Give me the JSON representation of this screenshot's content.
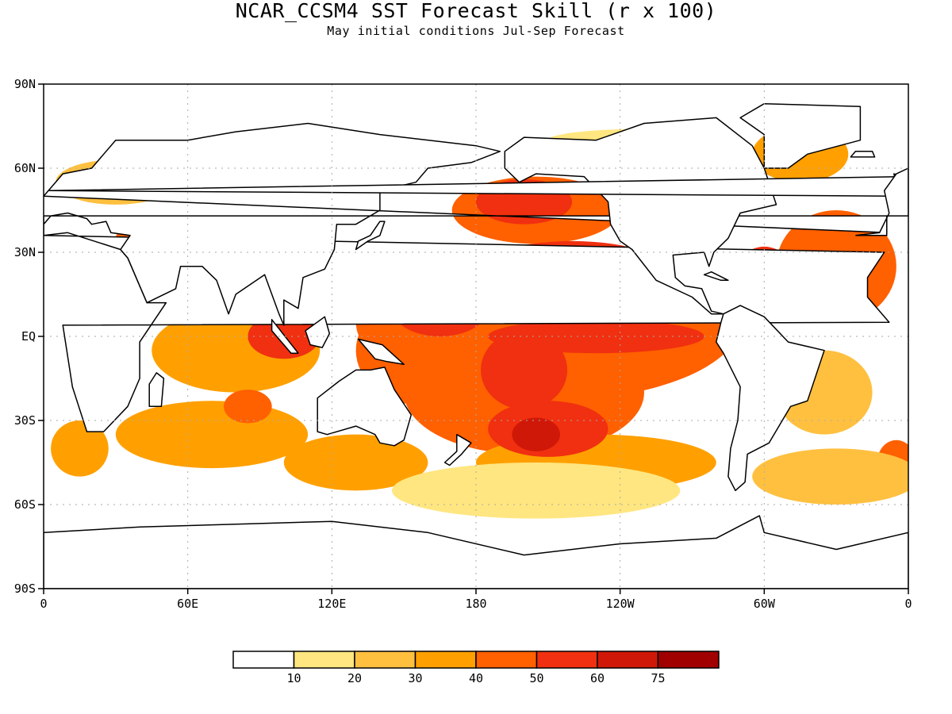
{
  "figure": {
    "title": "NCAR_CCSM4 SST Forecast Skill (r x 100)",
    "subtitle": "May initial conditions  Jul-Sep Forecast"
  },
  "axes": {
    "lat_labels": [
      "90N",
      "60N",
      "30N",
      "EQ",
      "30S",
      "60S",
      "90S"
    ],
    "lon_labels": [
      "0",
      "60E",
      "120E",
      "180",
      "120W",
      "60W",
      "0"
    ]
  },
  "colorbar": {
    "colors": [
      "#ffffff",
      "#ffe680",
      "#ffc040",
      "#ffa000",
      "#ff6000",
      "#f03010",
      "#d01808",
      "#a00000"
    ],
    "labels": [
      "10",
      "20",
      "30",
      "40",
      "50",
      "60",
      "75"
    ]
  },
  "colors": {
    "land": "#ffffff",
    "coast": "#000000",
    "frame": "#000000",
    "grid": "#aaaaaa"
  }
}
